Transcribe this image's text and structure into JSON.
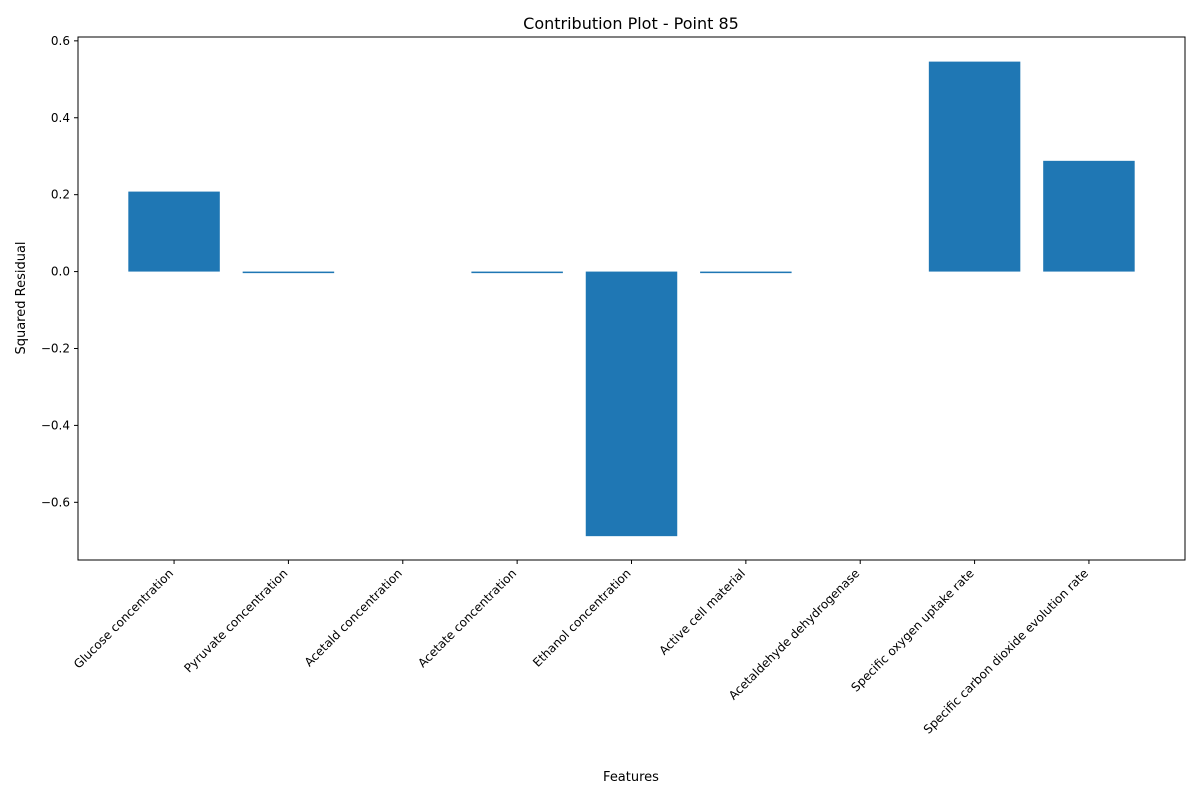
{
  "chart_data": {
    "type": "bar",
    "title": "Contribution Plot - Point 85",
    "xlabel": "Features",
    "ylabel": "Squared Residual",
    "categories": [
      "Glucose concentration",
      "Pyruvate concentration",
      "Acetald concentration",
      "Acetate concentration",
      "Ethanol concentration",
      "Active cell material",
      "Acetaldehyde dehydrogenase",
      "Specific oxygen uptake rate",
      "Specific carbon dioxide evolution rate"
    ],
    "values": [
      0.208,
      -0.004,
      0.0,
      -0.004,
      -0.688,
      -0.004,
      0.0,
      0.546,
      0.288
    ],
    "ylim": [
      -0.75,
      0.61
    ],
    "yticks": [
      -0.6,
      -0.4,
      -0.2,
      0.0,
      0.2,
      0.4,
      0.6
    ],
    "ytick_labels": [
      "−0.6",
      "−0.4",
      "−0.2",
      "0.0",
      "0.2",
      "0.4",
      "0.6"
    ],
    "grid": false,
    "legend": "none",
    "bar_color": "#1f77b4"
  }
}
